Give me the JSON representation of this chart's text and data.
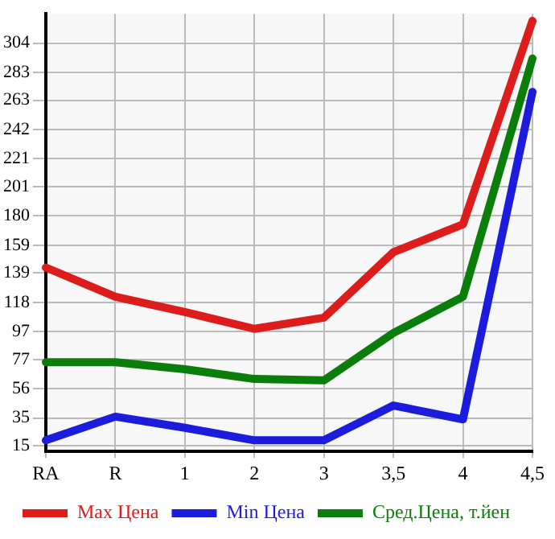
{
  "chart_data": {
    "type": "line",
    "categories": [
      "RA",
      "R",
      "1",
      "2",
      "3",
      "3,5",
      "4",
      "4,5"
    ],
    "series": [
      {
        "name": "Max Цена",
        "color": "#dd1c1c",
        "values": [
          143,
          122,
          111,
          99,
          107,
          154,
          174,
          320
        ]
      },
      {
        "name": "Min Цена",
        "color": "#1c1cdd",
        "values": [
          19,
          36,
          28,
          19,
          19,
          44,
          34,
          269
        ]
      },
      {
        "name": "Сред.Цена, т.йен",
        "color": "#0a7d0a",
        "values": [
          75,
          75,
          70,
          63,
          62,
          96,
          122,
          293
        ]
      }
    ],
    "ylim": [
      11,
      325
    ],
    "yticks": [
      15,
      35,
      56,
      77,
      97,
      118,
      139,
      159,
      180,
      201,
      221,
      242,
      263,
      283,
      304
    ],
    "grid": true,
    "legend": "bottom",
    "marker": "none",
    "line_style": "solid"
  }
}
